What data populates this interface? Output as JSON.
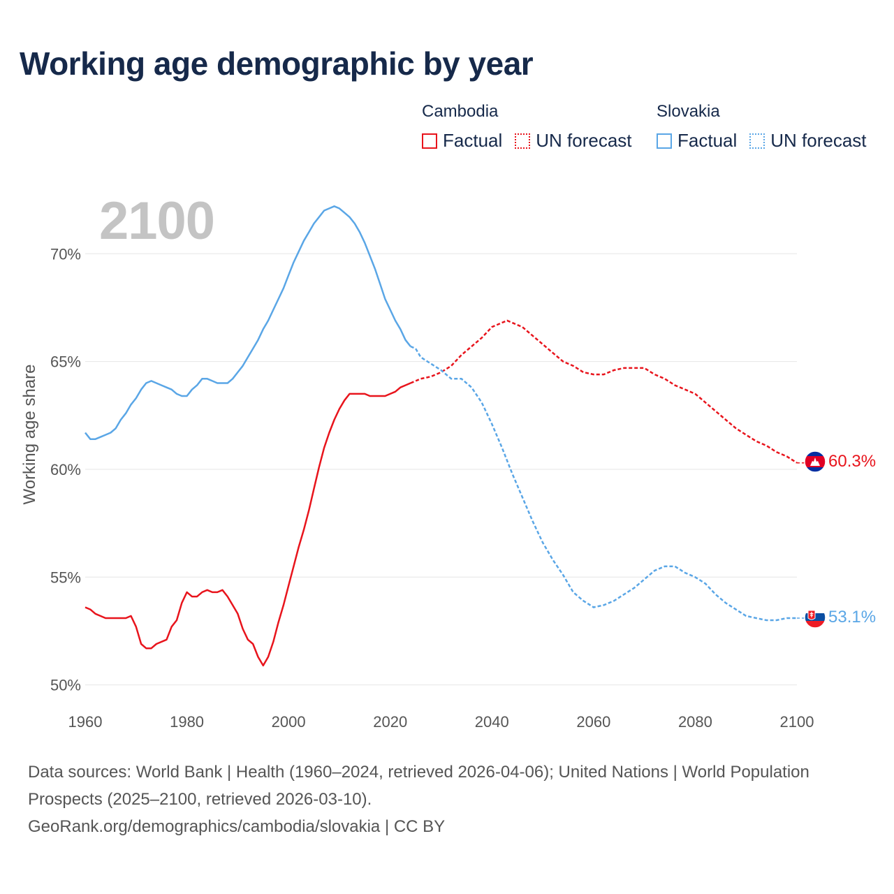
{
  "title": "Working age demographic by year",
  "legend": {
    "groups": [
      {
        "country": "Cambodia",
        "color": "#e8141c",
        "factual_label": "Factual",
        "forecast_label": "UN forecast"
      },
      {
        "country": "Slovakia",
        "color": "#5aa6e6",
        "factual_label": "Factual",
        "forecast_label": "UN forecast"
      }
    ]
  },
  "year_label": "2100",
  "footer": {
    "sources": "Data sources: World Bank | Health (1960–2024, retrieved 2026-04-06); United Nations | World Population Prospects (2025–2100, retrieved 2026-03-10).",
    "url": "GeoRank.org/demographics/cambodia/slovakia | CC BY"
  },
  "chart_data": {
    "type": "line",
    "title": "Working age demographic by year",
    "xlabel": "",
    "ylabel": "Working age share",
    "xlim": [
      1960,
      2100
    ],
    "ylim": [
      49.6,
      72.6
    ],
    "x_ticks": [
      1960,
      1980,
      2000,
      2020,
      2040,
      2060,
      2080,
      2100
    ],
    "x_tick_labels": [
      "1960",
      "1980",
      "2000",
      "2020",
      "2040",
      "2060",
      "2080",
      "2100"
    ],
    "y_ticks": [
      50,
      55,
      60,
      65,
      70
    ],
    "y_tick_labels": [
      "50%",
      "55%",
      "60%",
      "65%",
      "70%"
    ],
    "grid": true,
    "factual_range": [
      1960,
      2024
    ],
    "forecast_range": [
      2024,
      2100
    ],
    "series": [
      {
        "name": "Cambodia",
        "color": "#e8141c",
        "end_label": "60.3%",
        "flag": "Cambodia",
        "points": [
          [
            1960,
            53.6
          ],
          [
            1961,
            53.5
          ],
          [
            1962,
            53.3
          ],
          [
            1963,
            53.2
          ],
          [
            1964,
            53.1
          ],
          [
            1966,
            53.1
          ],
          [
            1968,
            53.1
          ],
          [
            1969,
            53.2
          ],
          [
            1970,
            52.7
          ],
          [
            1971,
            51.9
          ],
          [
            1972,
            51.7
          ],
          [
            1973,
            51.7
          ],
          [
            1974,
            51.9
          ],
          [
            1976,
            52.1
          ],
          [
            1977,
            52.7
          ],
          [
            1978,
            53.0
          ],
          [
            1979,
            53.8
          ],
          [
            1980,
            54.3
          ],
          [
            1981,
            54.1
          ],
          [
            1982,
            54.1
          ],
          [
            1983,
            54.3
          ],
          [
            1984,
            54.4
          ],
          [
            1985,
            54.3
          ],
          [
            1986,
            54.3
          ],
          [
            1987,
            54.4
          ],
          [
            1988,
            54.1
          ],
          [
            1989,
            53.7
          ],
          [
            1990,
            53.3
          ],
          [
            1991,
            52.6
          ],
          [
            1992,
            52.1
          ],
          [
            1993,
            51.9
          ],
          [
            1994,
            51.3
          ],
          [
            1995,
            50.9
          ],
          [
            1996,
            51.3
          ],
          [
            1997,
            52.0
          ],
          [
            1998,
            52.9
          ],
          [
            1999,
            53.7
          ],
          [
            2000,
            54.6
          ],
          [
            2001,
            55.5
          ],
          [
            2002,
            56.4
          ],
          [
            2003,
            57.2
          ],
          [
            2004,
            58.1
          ],
          [
            2005,
            59.1
          ],
          [
            2006,
            60.1
          ],
          [
            2007,
            61.0
          ],
          [
            2008,
            61.7
          ],
          [
            2009,
            62.3
          ],
          [
            2010,
            62.8
          ],
          [
            2011,
            63.2
          ],
          [
            2012,
            63.5
          ],
          [
            2013,
            63.5
          ],
          [
            2014,
            63.5
          ],
          [
            2015,
            63.5
          ],
          [
            2016,
            63.4
          ],
          [
            2017,
            63.4
          ],
          [
            2018,
            63.4
          ],
          [
            2019,
            63.4
          ],
          [
            2020,
            63.5
          ],
          [
            2021,
            63.6
          ],
          [
            2022,
            63.8
          ],
          [
            2023,
            63.9
          ],
          [
            2024,
            64.0
          ],
          [
            2026,
            64.2
          ],
          [
            2028,
            64.3
          ],
          [
            2030,
            64.5
          ],
          [
            2032,
            64.8
          ],
          [
            2034,
            65.3
          ],
          [
            2036,
            65.7
          ],
          [
            2038,
            66.1
          ],
          [
            2040,
            66.6
          ],
          [
            2042,
            66.8
          ],
          [
            2043,
            66.9
          ],
          [
            2046,
            66.6
          ],
          [
            2048,
            66.2
          ],
          [
            2050,
            65.8
          ],
          [
            2052,
            65.4
          ],
          [
            2054,
            65.0
          ],
          [
            2056,
            64.8
          ],
          [
            2058,
            64.5
          ],
          [
            2060,
            64.4
          ],
          [
            2062,
            64.4
          ],
          [
            2064,
            64.6
          ],
          [
            2066,
            64.7
          ],
          [
            2068,
            64.7
          ],
          [
            2070,
            64.7
          ],
          [
            2072,
            64.4
          ],
          [
            2074,
            64.2
          ],
          [
            2076,
            63.9
          ],
          [
            2078,
            63.7
          ],
          [
            2080,
            63.5
          ],
          [
            2082,
            63.1
          ],
          [
            2084,
            62.7
          ],
          [
            2086,
            62.3
          ],
          [
            2088,
            61.9
          ],
          [
            2090,
            61.6
          ],
          [
            2092,
            61.3
          ],
          [
            2094,
            61.1
          ],
          [
            2096,
            60.8
          ],
          [
            2098,
            60.6
          ],
          [
            2100,
            60.3
          ]
        ]
      },
      {
        "name": "Slovakia",
        "color": "#5aa6e6",
        "end_label": "53.1%",
        "flag": "Slovakia",
        "points": [
          [
            1960,
            61.7
          ],
          [
            1961,
            61.4
          ],
          [
            1962,
            61.4
          ],
          [
            1963,
            61.5
          ],
          [
            1964,
            61.6
          ],
          [
            1965,
            61.7
          ],
          [
            1966,
            61.9
          ],
          [
            1967,
            62.3
          ],
          [
            1968,
            62.6
          ],
          [
            1969,
            63.0
          ],
          [
            1970,
            63.3
          ],
          [
            1971,
            63.7
          ],
          [
            1972,
            64.0
          ],
          [
            1973,
            64.1
          ],
          [
            1974,
            64.0
          ],
          [
            1975,
            63.9
          ],
          [
            1976,
            63.8
          ],
          [
            1977,
            63.7
          ],
          [
            1978,
            63.5
          ],
          [
            1979,
            63.4
          ],
          [
            1980,
            63.4
          ],
          [
            1981,
            63.7
          ],
          [
            1982,
            63.9
          ],
          [
            1983,
            64.2
          ],
          [
            1984,
            64.2
          ],
          [
            1985,
            64.1
          ],
          [
            1986,
            64.0
          ],
          [
            1987,
            64.0
          ],
          [
            1988,
            64.0
          ],
          [
            1989,
            64.2
          ],
          [
            1990,
            64.5
          ],
          [
            1991,
            64.8
          ],
          [
            1992,
            65.2
          ],
          [
            1993,
            65.6
          ],
          [
            1994,
            66.0
          ],
          [
            1995,
            66.5
          ],
          [
            1996,
            66.9
          ],
          [
            1997,
            67.4
          ],
          [
            1998,
            67.9
          ],
          [
            1999,
            68.4
          ],
          [
            2000,
            69.0
          ],
          [
            2001,
            69.6
          ],
          [
            2002,
            70.1
          ],
          [
            2003,
            70.6
          ],
          [
            2004,
            71.0
          ],
          [
            2005,
            71.4
          ],
          [
            2006,
            71.7
          ],
          [
            2007,
            72.0
          ],
          [
            2008,
            72.1
          ],
          [
            2009,
            72.2
          ],
          [
            2010,
            72.1
          ],
          [
            2011,
            71.9
          ],
          [
            2012,
            71.7
          ],
          [
            2013,
            71.4
          ],
          [
            2014,
            71.0
          ],
          [
            2015,
            70.5
          ],
          [
            2016,
            69.9
          ],
          [
            2017,
            69.3
          ],
          [
            2018,
            68.6
          ],
          [
            2019,
            67.9
          ],
          [
            2020,
            67.4
          ],
          [
            2021,
            66.9
          ],
          [
            2022,
            66.5
          ],
          [
            2023,
            66.0
          ],
          [
            2024,
            65.7
          ],
          [
            2025,
            65.6
          ],
          [
            2026,
            65.2
          ],
          [
            2028,
            64.9
          ],
          [
            2030,
            64.6
          ],
          [
            2032,
            64.2
          ],
          [
            2034,
            64.2
          ],
          [
            2036,
            63.8
          ],
          [
            2038,
            63.1
          ],
          [
            2040,
            62.1
          ],
          [
            2042,
            61.0
          ],
          [
            2044,
            59.8
          ],
          [
            2046,
            58.7
          ],
          [
            2048,
            57.6
          ],
          [
            2050,
            56.6
          ],
          [
            2052,
            55.8
          ],
          [
            2054,
            55.1
          ],
          [
            2056,
            54.3
          ],
          [
            2058,
            53.9
          ],
          [
            2060,
            53.6
          ],
          [
            2062,
            53.7
          ],
          [
            2064,
            53.9
          ],
          [
            2066,
            54.2
          ],
          [
            2068,
            54.5
          ],
          [
            2070,
            54.9
          ],
          [
            2072,
            55.3
          ],
          [
            2074,
            55.5
          ],
          [
            2076,
            55.5
          ],
          [
            2078,
            55.2
          ],
          [
            2080,
            55.0
          ],
          [
            2082,
            54.7
          ],
          [
            2084,
            54.2
          ],
          [
            2086,
            53.8
          ],
          [
            2088,
            53.5
          ],
          [
            2090,
            53.2
          ],
          [
            2092,
            53.1
          ],
          [
            2094,
            53.0
          ],
          [
            2096,
            53.0
          ],
          [
            2098,
            53.1
          ],
          [
            2100,
            53.1
          ]
        ]
      }
    ]
  }
}
